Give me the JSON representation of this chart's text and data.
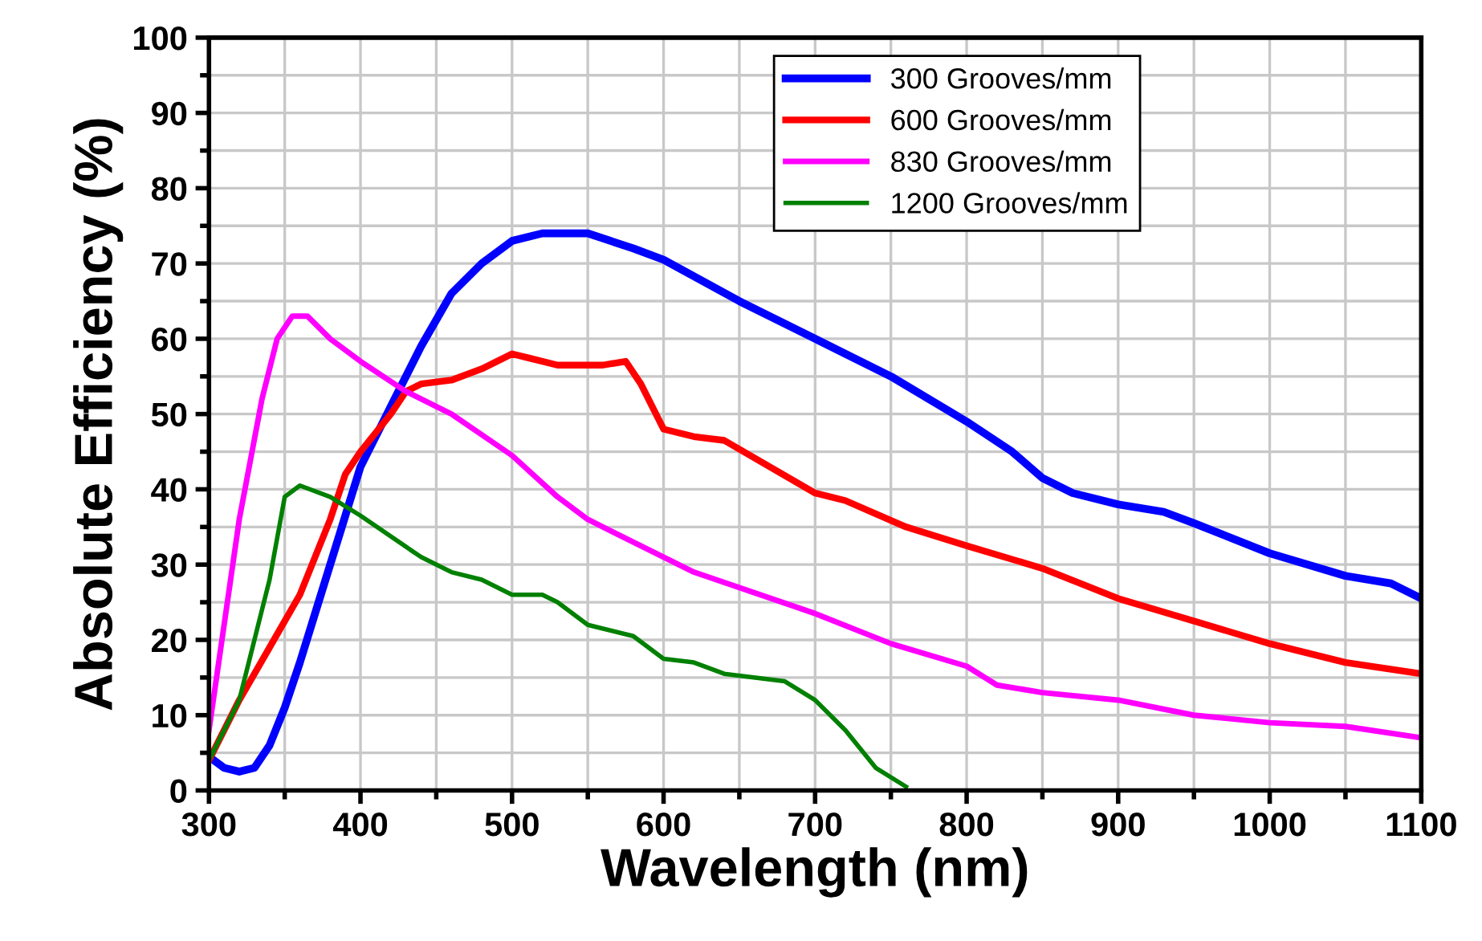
{
  "chart_data": {
    "type": "line",
    "xlabel": "Wavelength (nm)",
    "ylabel": "Absolute Efficiency (%)",
    "xlim": [
      300,
      1100
    ],
    "ylim": [
      0,
      100
    ],
    "xticks": [
      300,
      400,
      500,
      600,
      700,
      800,
      900,
      1000,
      1100
    ],
    "yticks": [
      0,
      10,
      20,
      30,
      40,
      50,
      60,
      70,
      80,
      90,
      100
    ],
    "grid": true,
    "legend": "top right",
    "marker": "none",
    "line_style": "solid",
    "series": [
      {
        "name": "300 Grooves/mm",
        "color": "#0000ff",
        "x": [
          300,
          310,
          320,
          330,
          340,
          350,
          360,
          380,
          400,
          420,
          440,
          460,
          480,
          500,
          520,
          550,
          580,
          600,
          650,
          700,
          750,
          800,
          830,
          850,
          870,
          900,
          930,
          950,
          1000,
          1050,
          1080,
          1100
        ],
        "values": [
          4.5,
          3,
          2.5,
          3,
          6,
          11,
          17,
          30,
          43,
          51,
          59,
          66,
          70,
          73,
          74,
          74,
          72,
          70.5,
          65,
          60,
          55,
          49,
          45,
          41.5,
          39.5,
          38,
          37,
          35.5,
          31.5,
          28.5,
          27.5,
          25.5
        ]
      },
      {
        "name": "600 Grooves/mm",
        "color": "#ff0000",
        "x": [
          300,
          320,
          340,
          360,
          380,
          390,
          400,
          420,
          430,
          440,
          460,
          480,
          500,
          510,
          530,
          560,
          575,
          585,
          600,
          620,
          640,
          700,
          720,
          760,
          800,
          850,
          900,
          950,
          1000,
          1050,
          1100
        ],
        "values": [
          4,
          12,
          19,
          26,
          36,
          42,
          45,
          50,
          53,
          54,
          54.5,
          56,
          58,
          57.5,
          56.5,
          56.5,
          57,
          54,
          48,
          47,
          46.5,
          39.5,
          38.5,
          35,
          32.5,
          29.5,
          25.5,
          22.5,
          19.5,
          17,
          15.5
        ]
      },
      {
        "name": "830 Grooves/mm",
        "color": "#ff00ff",
        "x": [
          300,
          310,
          320,
          335,
          345,
          355,
          365,
          380,
          400,
          430,
          460,
          500,
          530,
          550,
          600,
          620,
          700,
          750,
          800,
          820,
          850,
          900,
          950,
          1000,
          1050,
          1100
        ],
        "values": [
          8,
          22,
          36,
          52,
          60,
          63,
          63,
          60,
          57,
          53,
          50,
          44.5,
          39,
          36,
          31,
          29,
          23.5,
          19.5,
          16.5,
          14,
          13,
          12,
          10,
          9,
          8.5,
          7
        ]
      },
      {
        "name": "1200 Grooves/mm",
        "color": "#008000",
        "x": [
          300,
          320,
          340,
          350,
          360,
          380,
          400,
          440,
          460,
          480,
          500,
          520,
          530,
          550,
          580,
          600,
          620,
          640,
          680,
          700,
          720,
          740,
          760
        ],
        "values": [
          4,
          12,
          28,
          39,
          40.5,
          39,
          36.5,
          31,
          29,
          28,
          26,
          26,
          25,
          22,
          20.5,
          17.5,
          17,
          15.5,
          14.5,
          12,
          8,
          3,
          0.5
        ]
      }
    ]
  }
}
